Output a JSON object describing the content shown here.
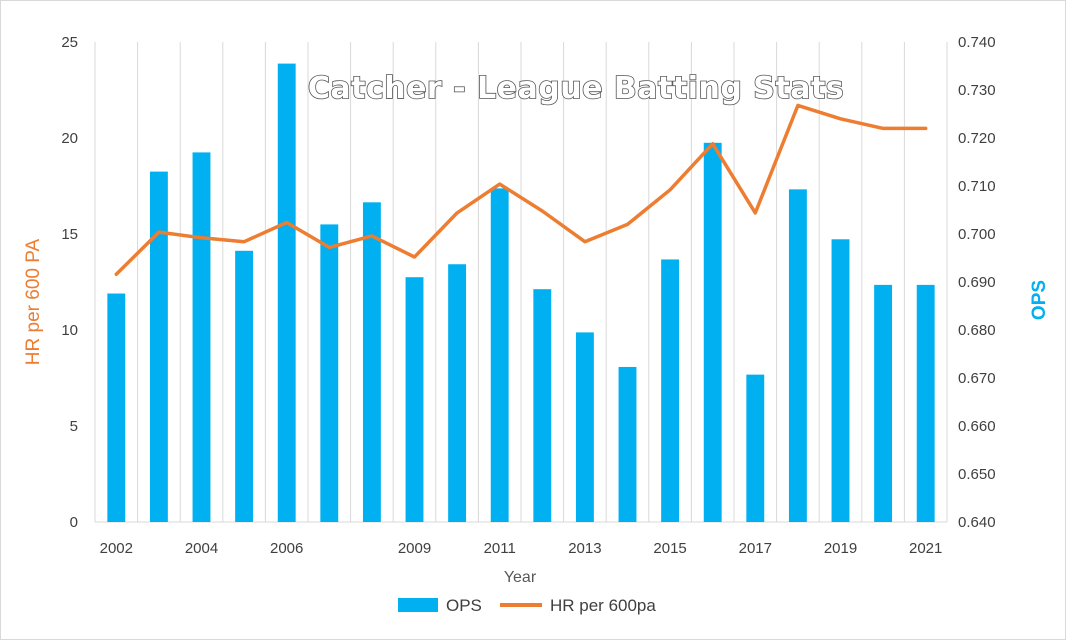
{
  "chart_data": {
    "type": "bar+line",
    "title": "Catcher - League Batting Stats",
    "xlabel": "Year",
    "ylabel_left": "HR per 600 PA",
    "ylabel_right": "OPS",
    "years": [
      2002,
      2003,
      2004,
      2005,
      2006,
      2007,
      2008,
      2009,
      2010,
      2011,
      2012,
      2013,
      2014,
      2015,
      2016,
      2017,
      2018,
      2019,
      2020,
      2021
    ],
    "x_tick_labels": [
      "2002",
      "2004",
      "2006",
      "2009",
      "2011",
      "2013",
      "2015",
      "2017",
      "2019",
      "2021"
    ],
    "x_tick_years": [
      2002,
      2004,
      2006,
      2009,
      2011,
      2013,
      2015,
      2017,
      2019,
      2021
    ],
    "left_axis": {
      "ylim": [
        0,
        25
      ],
      "ticks": [
        "0",
        "5",
        "10",
        "15",
        "20",
        "25"
      ],
      "tick_values": [
        0,
        5,
        10,
        15,
        20,
        25
      ]
    },
    "right_axis": {
      "ylim": [
        0.64,
        0.74
      ],
      "ticks": [
        "0.640",
        "0.650",
        "0.660",
        "0.670",
        "0.680",
        "0.690",
        "0.700",
        "0.710",
        "0.720",
        "0.730",
        "0.740"
      ],
      "tick_values": [
        0.64,
        0.65,
        0.66,
        0.67,
        0.68,
        0.69,
        0.7,
        0.71,
        0.72,
        0.73,
        0.74
      ]
    },
    "grid": "vertical",
    "series": [
      {
        "name": "OPS",
        "type": "bar",
        "axis": "right",
        "color": "#00b0f0",
        "values": [
          0.6876,
          0.713,
          0.717,
          0.6965,
          0.7355,
          0.702,
          0.7066,
          0.691,
          0.6937,
          0.7095,
          0.6885,
          0.6795,
          0.6723,
          0.6947,
          0.719,
          0.6707,
          0.7093,
          0.6989,
          0.6894,
          0.6894
        ]
      },
      {
        "name": "HR per 600pa",
        "type": "line",
        "axis": "left",
        "color": "#ed7d31",
        "values": [
          12.9,
          15.1,
          14.8,
          14.6,
          15.6,
          14.3,
          14.9,
          13.8,
          16.1,
          17.6,
          16.2,
          14.6,
          15.5,
          17.3,
          19.7,
          16.1,
          21.7,
          21.0,
          20.5,
          20.5
        ]
      }
    ],
    "legend_position": "bottom"
  }
}
